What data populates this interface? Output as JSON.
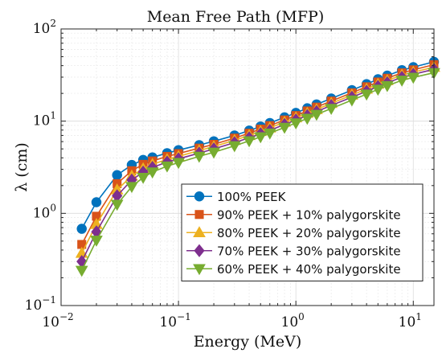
{
  "chart_data": {
    "type": "line",
    "title": "Mean Free Path (MFP)",
    "xlabel": "Energy (MeV)",
    "ylabel": "λ (cm)",
    "xscale": "log",
    "yscale": "log",
    "xlim": [
      0.01,
      15
    ],
    "ylim": [
      0.1,
      100
    ],
    "grid": true,
    "legend_position": "bottom-right",
    "x_ticks": [
      {
        "value": 0.01,
        "base": "10",
        "exp": "−2"
      },
      {
        "value": 0.1,
        "base": "10",
        "exp": "−1"
      },
      {
        "value": 1,
        "base": "10",
        "exp": "0"
      },
      {
        "value": 10,
        "base": "10",
        "exp": "1"
      }
    ],
    "y_ticks": [
      {
        "value": 0.1,
        "base": "10",
        "exp": "−1"
      },
      {
        "value": 1,
        "base": "10",
        "exp": "0"
      },
      {
        "value": 10,
        "base": "10",
        "exp": "1"
      },
      {
        "value": 100,
        "base": "10",
        "exp": "2"
      }
    ],
    "x": [
      0.015,
      0.02,
      0.03,
      0.04,
      0.05,
      0.06,
      0.08,
      0.1,
      0.15,
      0.2,
      0.3,
      0.4,
      0.5,
      0.6,
      0.8,
      1,
      1.25,
      1.5,
      2,
      3,
      4,
      5,
      6,
      8,
      10,
      15
    ],
    "series": [
      {
        "name": "100% PEEK",
        "color": "#0072BD",
        "marker": "circle",
        "values": [
          0.68,
          1.32,
          2.6,
          3.35,
          3.8,
          4.05,
          4.5,
          4.85,
          5.5,
          6.05,
          7.0,
          7.9,
          8.75,
          9.55,
          11.0,
          12.3,
          13.8,
          15.2,
          17.6,
          21.7,
          25.2,
          28.5,
          31.2,
          35.7,
          38.5,
          44.0
        ]
      },
      {
        "name": "90% PEEK + 10% palygorskite",
        "color": "#D95319",
        "marker": "square",
        "values": [
          0.46,
          0.93,
          2.1,
          2.9,
          3.4,
          3.7,
          4.15,
          4.45,
          5.1,
          5.6,
          6.55,
          7.4,
          8.2,
          8.95,
          10.3,
          11.5,
          12.9,
          14.2,
          16.5,
          20.3,
          23.6,
          26.6,
          29.2,
          33.4,
          36.0,
          41.0
        ]
      },
      {
        "name": "80% PEEK + 20% palygorskite",
        "color": "#EDB120",
        "marker": "triangle-up",
        "values": [
          0.37,
          0.76,
          1.8,
          2.55,
          3.05,
          3.4,
          3.85,
          4.15,
          4.8,
          5.3,
          6.2,
          7.0,
          7.75,
          8.45,
          9.75,
          10.9,
          12.2,
          13.4,
          15.6,
          19.2,
          22.3,
          25.2,
          27.6,
          31.6,
          34.0,
          38.5
        ]
      },
      {
        "name": "70% PEEK + 30% palygorskite",
        "color": "#7E2F8E",
        "marker": "diamond",
        "values": [
          0.3,
          0.63,
          1.55,
          2.3,
          2.8,
          3.15,
          3.6,
          3.9,
          4.5,
          5.0,
          5.85,
          6.6,
          7.3,
          7.95,
          9.2,
          10.3,
          11.5,
          12.7,
          14.8,
          18.2,
          21.1,
          23.8,
          26.1,
          29.9,
          32.2,
          36.5
        ]
      },
      {
        "name": "60% PEEK + 40% palygorskite",
        "color": "#77AC30",
        "marker": "triangle-down",
        "values": [
          0.24,
          0.51,
          1.25,
          1.95,
          2.45,
          2.8,
          3.25,
          3.55,
          4.15,
          4.6,
          5.4,
          6.1,
          6.75,
          7.4,
          8.55,
          9.55,
          10.7,
          11.8,
          13.7,
          16.9,
          19.6,
          22.1,
          24.2,
          27.7,
          29.8,
          33.5
        ]
      }
    ]
  }
}
